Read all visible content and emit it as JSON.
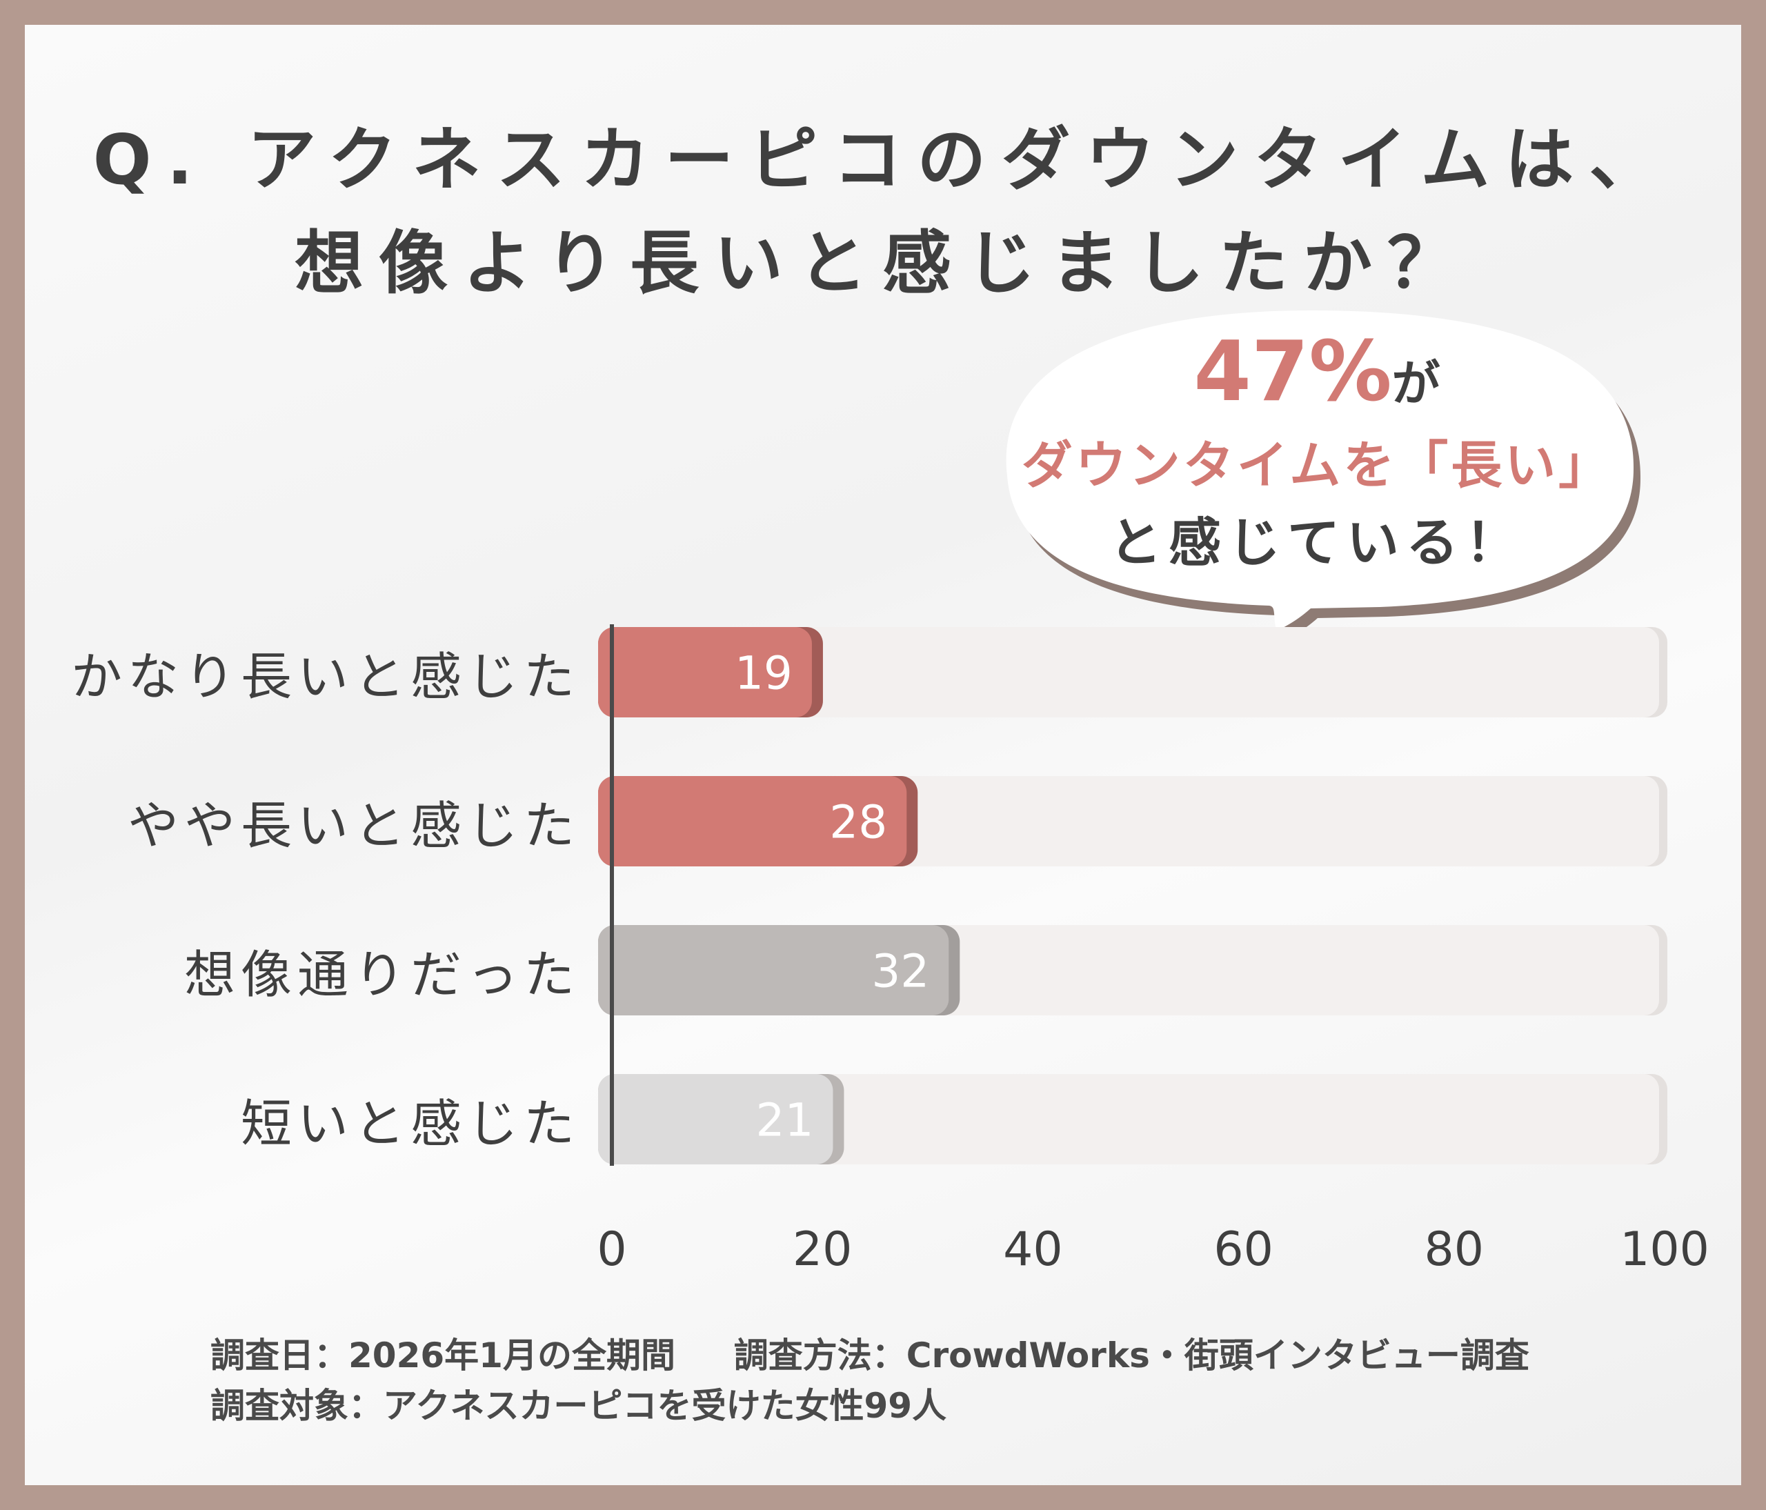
{
  "title_line1": "Q. アクネスカーピコのダウンタイムは、",
  "title_line2": "想像より長いと感じましたか？",
  "callout": {
    "percent": "47%",
    "suffix": "が",
    "line2": "ダウンタイムを「長い」",
    "line3": "と感じている！"
  },
  "chart_data": {
    "type": "bar",
    "orientation": "horizontal",
    "categories": [
      "かなり長いと感じた",
      "やや長いと感じた",
      "想像通りだった",
      "短いと感じた"
    ],
    "values": [
      19,
      28,
      32,
      21
    ],
    "xlim": [
      0,
      100
    ],
    "xticks": [
      "0",
      "20",
      "40",
      "60",
      "80",
      "100"
    ],
    "colors": [
      "#d27a74",
      "#d27a74",
      "#bdb9b7",
      "#dcdbdb"
    ],
    "grid": false
  },
  "footer": {
    "line1": "調査日：2026年1月の全期間　  調査方法：CrowdWorks・街頭インタビュー調査",
    "line2": "調査対象：アクネスカーピコを受けた女性99人"
  }
}
